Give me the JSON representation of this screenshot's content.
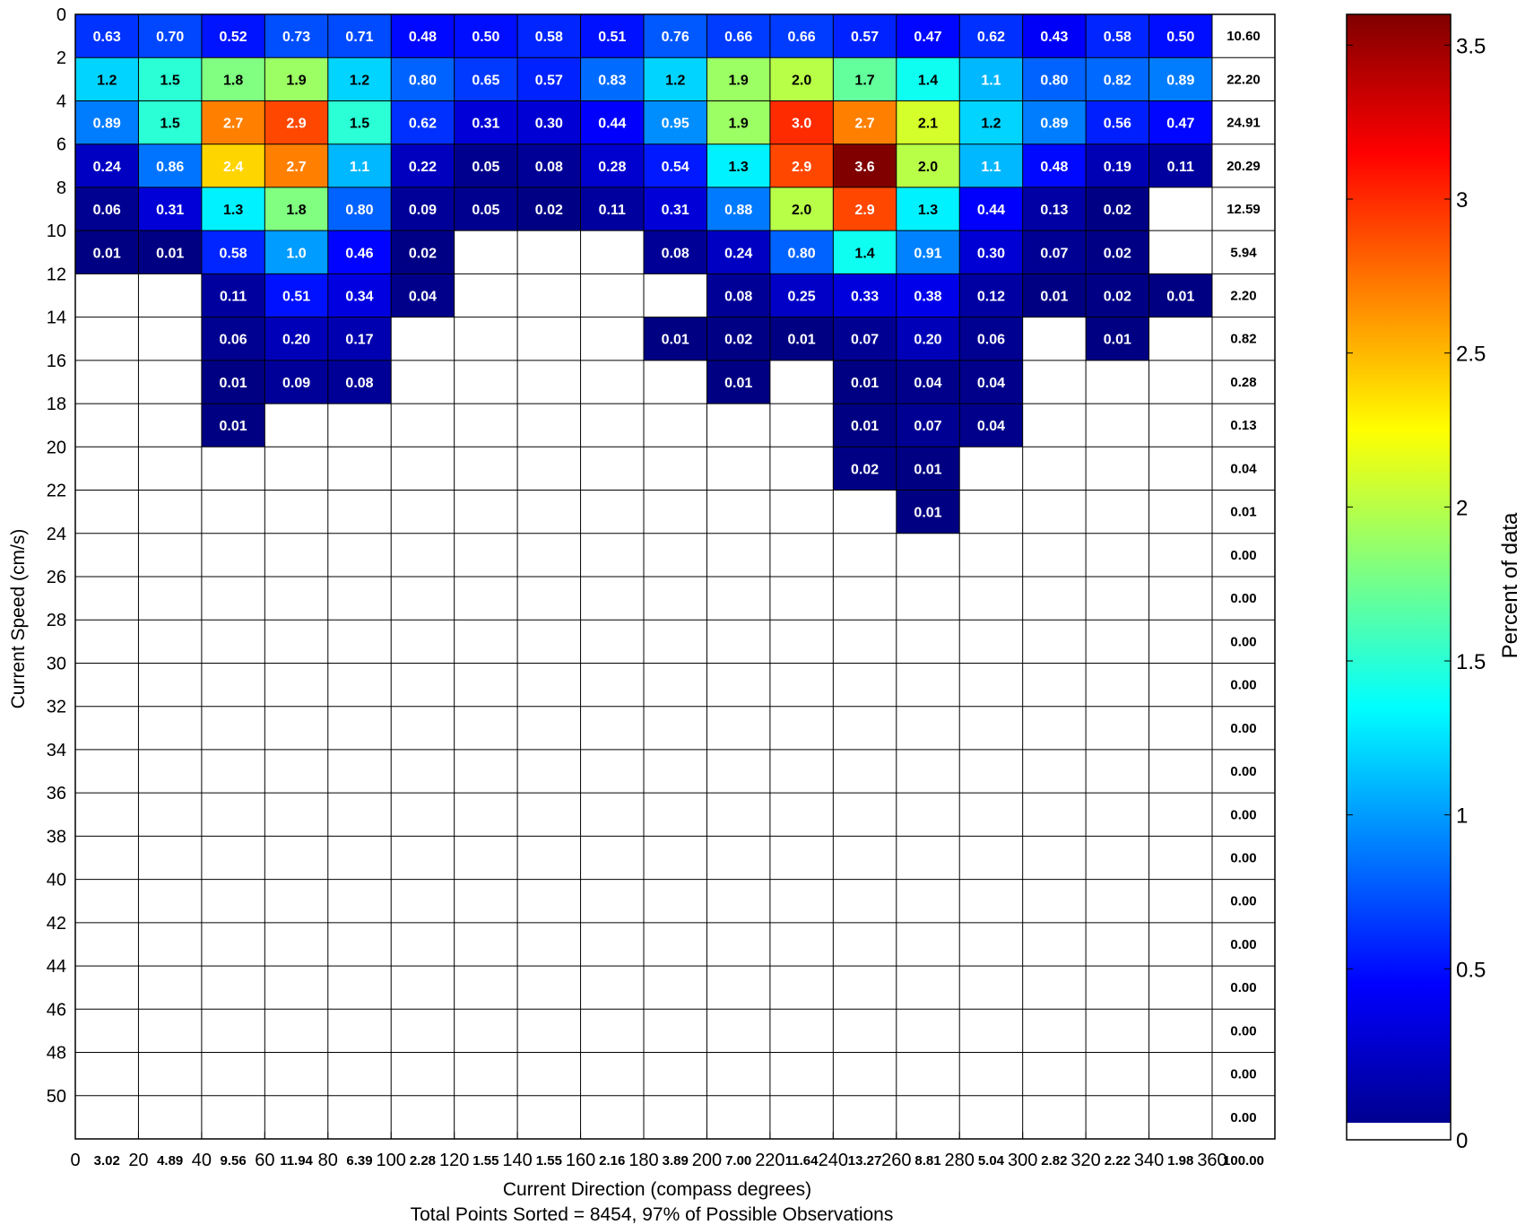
{
  "chart_data": {
    "type": "heatmap",
    "xlabel": "Current Direction (compass degrees)",
    "ylabel": "Current Speed (cm/s)",
    "footnote": "Total Points Sorted = 8454, 97% of Possible Observations",
    "colorbar_label": "Percent of data",
    "colorbar_range": [
      0,
      3.6
    ],
    "colorbar_ticks": [
      "0",
      "0.5",
      "1",
      "1.5",
      "2",
      "2.5",
      "3",
      "3.5"
    ],
    "colorbar_tick_values": [
      0,
      0.5,
      1,
      1.5,
      2,
      2.5,
      3,
      3.5
    ],
    "colormap": "jet",
    "x_tick_labels": [
      "0",
      "20",
      "40",
      "60",
      "80",
      "100",
      "120",
      "140",
      "160",
      "180",
      "200",
      "220",
      "240",
      "260",
      "280",
      "300",
      "320",
      "340",
      "360"
    ],
    "y_tick_labels": [
      "0",
      "2",
      "4",
      "6",
      "8",
      "10",
      "12",
      "14",
      "16",
      "18",
      "20",
      "22",
      "24",
      "26",
      "28",
      "30",
      "32",
      "34",
      "36",
      "38",
      "40",
      "42",
      "44",
      "46",
      "48",
      "50"
    ],
    "xlim": [
      0,
      360
    ],
    "ylim": [
      0,
      52
    ],
    "direction_bin_width": 20,
    "speed_bin_width": 2,
    "cells": [
      [
        "0.63",
        "0.70",
        "0.52",
        "0.73",
        "0.71",
        "0.48",
        "0.50",
        "0.58",
        "0.51",
        "0.76",
        "0.66",
        "0.66",
        "0.57",
        "0.47",
        "0.62",
        "0.43",
        "0.58",
        "0.50"
      ],
      [
        "1.2",
        "1.5",
        "1.8",
        "1.9",
        "1.2",
        "0.80",
        "0.65",
        "0.57",
        "0.83",
        "1.2",
        "1.9",
        "2.0",
        "1.7",
        "1.4",
        "1.1",
        "0.80",
        "0.82",
        "0.89"
      ],
      [
        "0.89",
        "1.5",
        "2.7",
        "2.9",
        "1.5",
        "0.62",
        "0.31",
        "0.30",
        "0.44",
        "0.95",
        "1.9",
        "3.0",
        "2.7",
        "2.1",
        "1.2",
        "0.89",
        "0.56",
        "0.47"
      ],
      [
        "0.24",
        "0.86",
        "2.4",
        "2.7",
        "1.1",
        "0.22",
        "0.05",
        "0.08",
        "0.28",
        "0.54",
        "1.3",
        "2.9",
        "3.6",
        "2.0",
        "1.1",
        "0.48",
        "0.19",
        "0.11"
      ],
      [
        "0.06",
        "0.31",
        "1.3",
        "1.8",
        "0.80",
        "0.09",
        "0.05",
        "0.02",
        "0.11",
        "0.31",
        "0.88",
        "2.0",
        "2.9",
        "1.3",
        "0.44",
        "0.13",
        "0.02",
        ""
      ],
      [
        "0.01",
        "0.01",
        "0.58",
        "1.0",
        "0.46",
        "0.02",
        "",
        "",
        "",
        "0.08",
        "0.24",
        "0.80",
        "1.4",
        "0.91",
        "0.30",
        "0.07",
        "0.02",
        ""
      ],
      [
        "",
        "",
        "0.11",
        "0.51",
        "0.34",
        "0.04",
        "",
        "",
        "",
        "",
        "0.08",
        "0.25",
        "0.33",
        "0.38",
        "0.12",
        "0.01",
        "0.02",
        "0.01"
      ],
      [
        "",
        "",
        "0.06",
        "0.20",
        "0.17",
        "",
        "",
        "",
        "",
        "0.01",
        "0.02",
        "0.01",
        "0.07",
        "0.20",
        "0.06",
        "",
        "0.01",
        ""
      ],
      [
        "",
        "",
        "0.01",
        "0.09",
        "0.08",
        "",
        "",
        "",
        "",
        "",
        "0.01",
        "",
        "0.01",
        "0.04",
        "0.04",
        "",
        "",
        ""
      ],
      [
        "",
        "",
        "0.01",
        "",
        "",
        "",
        "",
        "",
        "",
        "",
        "",
        "",
        "0.01",
        "0.07",
        "0.04",
        "",
        "",
        ""
      ],
      [
        "",
        "",
        "",
        "",
        "",
        "",
        "",
        "",
        "",
        "",
        "",
        "",
        "0.02",
        "0.01",
        "",
        "",
        "",
        ""
      ],
      [
        "",
        "",
        "",
        "",
        "",
        "",
        "",
        "",
        "",
        "",
        "",
        "",
        "",
        "0.01",
        "",
        "",
        "",
        ""
      ]
    ],
    "row_totals": [
      "10.60",
      "22.20",
      "24.91",
      "20.29",
      "12.59",
      "5.94",
      "2.20",
      "0.82",
      "0.28",
      "0.13",
      "0.04",
      "0.01",
      "0.00",
      "0.00",
      "0.00",
      "0.00",
      "0.00",
      "0.00",
      "0.00",
      "0.00",
      "0.00",
      "0.00",
      "0.00",
      "0.00",
      "0.00",
      "0.00"
    ],
    "column_totals": [
      "3.02",
      "4.89",
      "9.56",
      "11.94",
      "6.39",
      "2.28",
      "1.55",
      "1.55",
      "2.16",
      "3.89",
      "7.00",
      "11.64",
      "13.27",
      "8.81",
      "5.04",
      "2.82",
      "2.22",
      "1.98"
    ],
    "grand_total": "100.00"
  }
}
